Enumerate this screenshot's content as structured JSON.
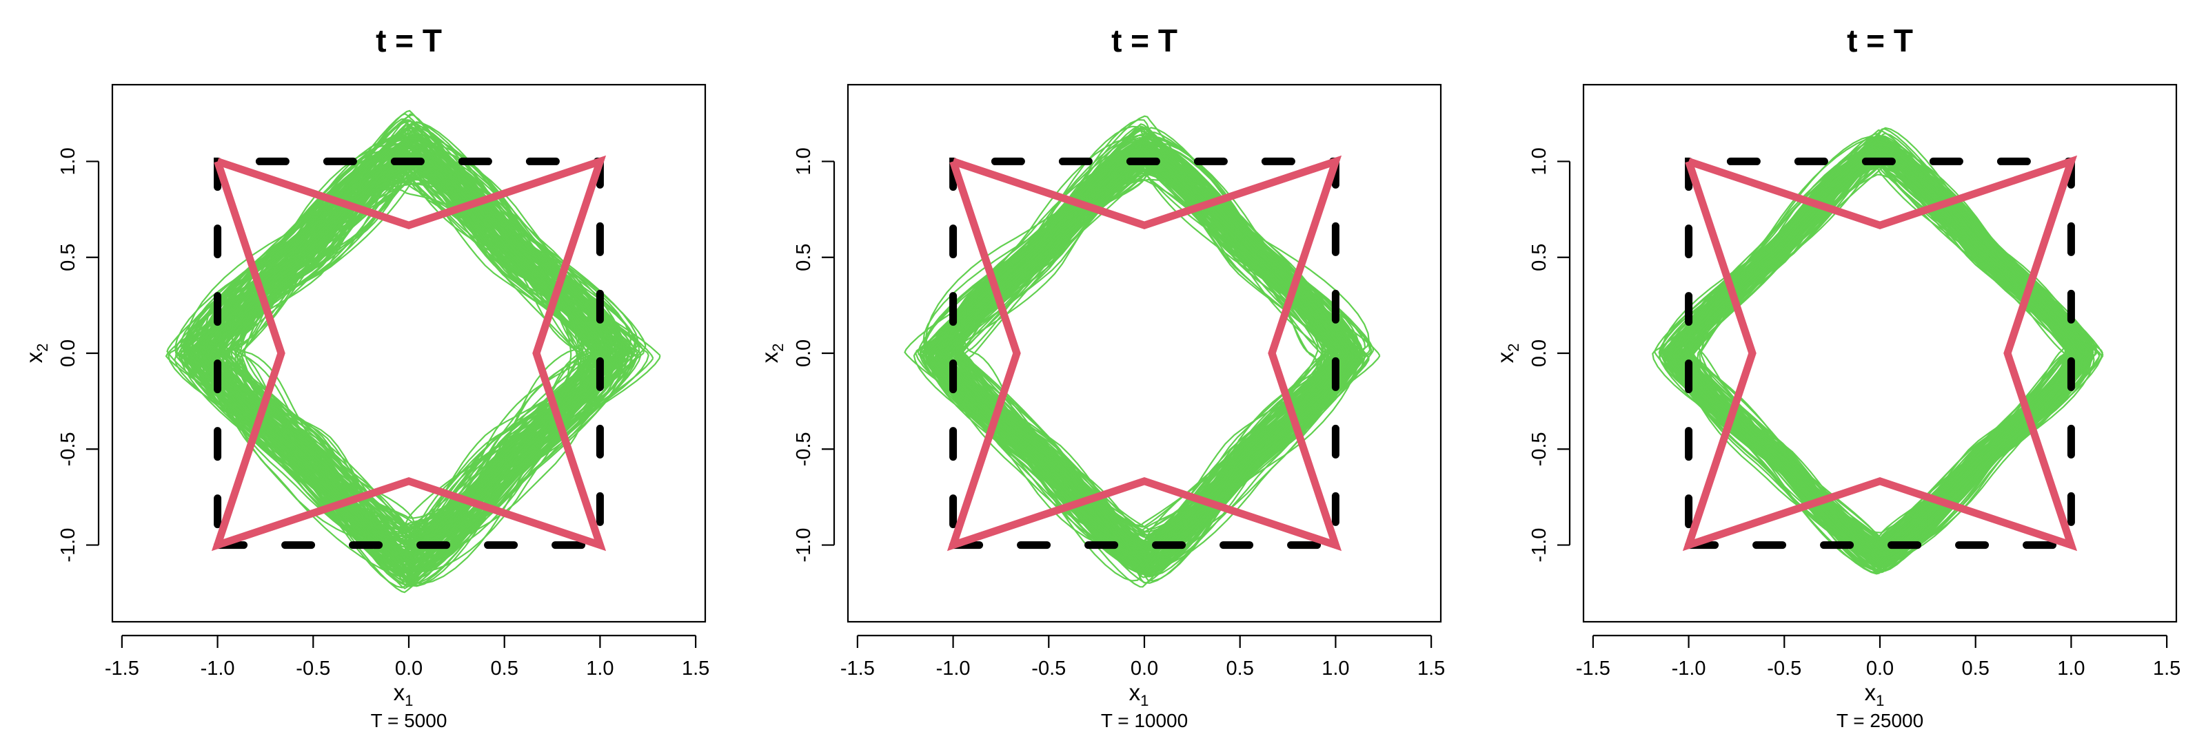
{
  "chart_data": [
    {
      "type": "line",
      "title": "t = T",
      "xlabel": "x",
      "xlabel_subscript": "1",
      "ylabel": "x",
      "ylabel_subscript": "2",
      "caption": "T = 5000",
      "xlim": [
        -1.55,
        1.55
      ],
      "ylim": [
        -1.4,
        1.4
      ],
      "xticks": [
        "-1.5",
        "-1.0",
        "-0.5",
        "0.0",
        "0.5",
        "1.0",
        "1.5"
      ],
      "yticks": [
        "-1.0",
        "-0.5",
        "0.0",
        "0.5",
        "1.0"
      ],
      "spread": 1.0,
      "series": [
        {
          "style": "dashed",
          "color": "#000000",
          "x": [
            -1,
            1,
            1,
            -1,
            -1
          ],
          "y": [
            -1,
            -1,
            1,
            1,
            -1
          ]
        },
        {
          "style": "solid",
          "color": "#DF536B",
          "x": [
            -1,
            0,
            1,
            0.667,
            1,
            0,
            -1,
            -0.667,
            -1
          ],
          "y": [
            1,
            0.667,
            1,
            0,
            -1,
            -0.667,
            -1,
            0,
            1
          ]
        },
        {
          "style": "band",
          "color": "#61D04F",
          "count": 140
        }
      ]
    },
    {
      "type": "line",
      "title": "t = T",
      "xlabel": "x",
      "xlabel_subscript": "1",
      "ylabel": "x",
      "ylabel_subscript": "2",
      "caption": "T = 10000",
      "xlim": [
        -1.55,
        1.55
      ],
      "ylim": [
        -1.4,
        1.4
      ],
      "xticks": [
        "-1.5",
        "-1.0",
        "-0.5",
        "0.0",
        "0.5",
        "1.0",
        "1.5"
      ],
      "yticks": [
        "-1.0",
        "-0.5",
        "0.0",
        "0.5",
        "1.0"
      ],
      "spread": 0.75,
      "series": [
        {
          "style": "dashed",
          "color": "#000000",
          "x": [
            -1,
            1,
            1,
            -1,
            -1
          ],
          "y": [
            -1,
            -1,
            1,
            1,
            -1
          ]
        },
        {
          "style": "solid",
          "color": "#DF536B",
          "x": [
            -1,
            0,
            1,
            0.667,
            1,
            0,
            -1,
            -0.667,
            -1
          ],
          "y": [
            1,
            0.667,
            1,
            0,
            -1,
            -0.667,
            -1,
            0,
            1
          ]
        },
        {
          "style": "band",
          "color": "#61D04F",
          "count": 140
        }
      ]
    },
    {
      "type": "line",
      "title": "t = T",
      "xlabel": "x",
      "xlabel_subscript": "1",
      "ylabel": "x",
      "ylabel_subscript": "2",
      "caption": "T = 25000",
      "xlim": [
        -1.55,
        1.55
      ],
      "ylim": [
        -1.4,
        1.4
      ],
      "xticks": [
        "-1.5",
        "-1.0",
        "-0.5",
        "0.0",
        "0.5",
        "1.0",
        "1.5"
      ],
      "yticks": [
        "-1.0",
        "-0.5",
        "0.0",
        "0.5",
        "1.0"
      ],
      "spread": 0.55,
      "series": [
        {
          "style": "dashed",
          "color": "#000000",
          "x": [
            -1,
            1,
            1,
            -1,
            -1
          ],
          "y": [
            -1,
            -1,
            1,
            1,
            -1
          ]
        },
        {
          "style": "solid",
          "color": "#DF536B",
          "x": [
            -1,
            0,
            1,
            0.667,
            1,
            0,
            -1,
            -0.667,
            -1
          ],
          "y": [
            1,
            0.667,
            1,
            0,
            -1,
            -0.667,
            -1,
            0,
            1
          ]
        },
        {
          "style": "band",
          "color": "#61D04F",
          "count": 140
        }
      ]
    }
  ]
}
